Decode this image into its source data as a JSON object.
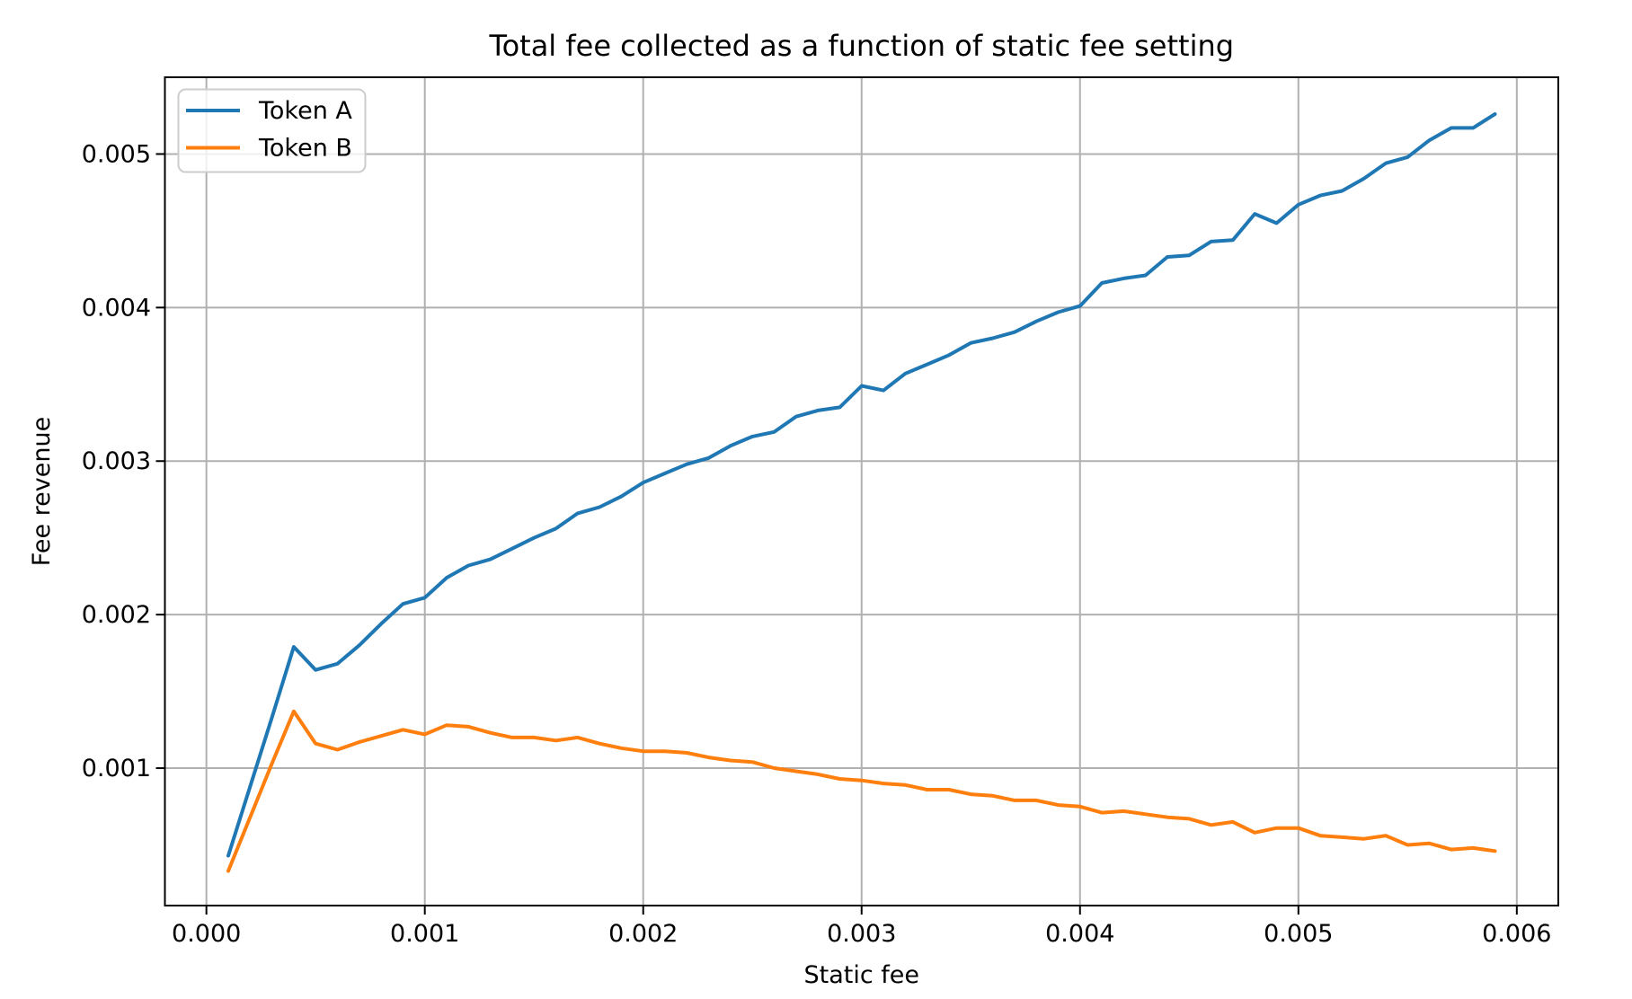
{
  "chart_data": {
    "type": "line",
    "title": "Total fee collected as a function of static fee setting",
    "xlabel": "Static fee",
    "ylabel": "Fee revenue",
    "grid": true,
    "grid_color": "#b0b0b0",
    "legend_position": "upper left",
    "xlim": [
      -0.00019,
      0.00619
    ],
    "ylim": [
      0.000105,
      0.0055
    ],
    "x_ticks": [
      {
        "v": 0.0,
        "label": "0.000"
      },
      {
        "v": 0.001,
        "label": "0.001"
      },
      {
        "v": 0.002,
        "label": "0.002"
      },
      {
        "v": 0.003,
        "label": "0.003"
      },
      {
        "v": 0.004,
        "label": "0.004"
      },
      {
        "v": 0.005,
        "label": "0.005"
      },
      {
        "v": 0.006,
        "label": "0.006"
      }
    ],
    "y_ticks": [
      {
        "v": 0.001,
        "label": "0.001"
      },
      {
        "v": 0.002,
        "label": "0.002"
      },
      {
        "v": 0.003,
        "label": "0.003"
      },
      {
        "v": 0.004,
        "label": "0.004"
      },
      {
        "v": 0.005,
        "label": "0.005"
      }
    ],
    "x": [
      0.0001,
      0.0002,
      0.0003,
      0.0004,
      0.0005,
      0.0006,
      0.0007,
      0.0008,
      0.0009,
      0.001,
      0.0011,
      0.0012,
      0.0013,
      0.0014,
      0.0015,
      0.0016,
      0.0017,
      0.0018,
      0.0019,
      0.002,
      0.0021,
      0.0022,
      0.0023,
      0.0024,
      0.0025,
      0.0026,
      0.0027,
      0.0028,
      0.0029,
      0.003,
      0.0031,
      0.0032,
      0.0033,
      0.0034,
      0.0035,
      0.0036,
      0.0037,
      0.0038,
      0.0039,
      0.004,
      0.0041,
      0.0042,
      0.0043,
      0.0044,
      0.0045,
      0.0046,
      0.0047,
      0.0048,
      0.0049,
      0.005,
      0.0051,
      0.0052,
      0.0053,
      0.0054,
      0.0055,
      0.0056,
      0.0057,
      0.0058,
      0.0059
    ],
    "series": [
      {
        "name": "Token A",
        "color": "#1f77b4",
        "values": [
          0.00043,
          0.00088,
          0.00133,
          0.00179,
          0.00164,
          0.00168,
          0.0018,
          0.00194,
          0.00207,
          0.00211,
          0.00224,
          0.00232,
          0.00236,
          0.00243,
          0.0025,
          0.00256,
          0.00266,
          0.0027,
          0.00277,
          0.00286,
          0.00292,
          0.00298,
          0.00302,
          0.0031,
          0.00316,
          0.00319,
          0.00329,
          0.00333,
          0.00335,
          0.00349,
          0.00346,
          0.00357,
          0.00363,
          0.00369,
          0.00377,
          0.0038,
          0.00384,
          0.00391,
          0.00397,
          0.00401,
          0.00416,
          0.00419,
          0.00421,
          0.00433,
          0.00434,
          0.00443,
          0.00444,
          0.00461,
          0.00455,
          0.00467,
          0.00473,
          0.00476,
          0.00484,
          0.00494,
          0.00498,
          0.00509,
          0.00517,
          0.00517,
          0.00526
        ]
      },
      {
        "name": "Token B",
        "color": "#ff7f0e",
        "values": [
          0.00033,
          0.00068,
          0.00103,
          0.00137,
          0.00116,
          0.00112,
          0.00117,
          0.00121,
          0.00125,
          0.00122,
          0.00128,
          0.00127,
          0.00123,
          0.0012,
          0.0012,
          0.00118,
          0.0012,
          0.00116,
          0.00113,
          0.00111,
          0.00111,
          0.0011,
          0.00107,
          0.00105,
          0.00104,
          0.001,
          0.00098,
          0.00096,
          0.00093,
          0.00092,
          0.0009,
          0.00089,
          0.00086,
          0.00086,
          0.00083,
          0.00082,
          0.00079,
          0.00079,
          0.00076,
          0.00075,
          0.00071,
          0.00072,
          0.0007,
          0.00068,
          0.00067,
          0.00063,
          0.00065,
          0.00058,
          0.00061,
          0.00061,
          0.00056,
          0.00055,
          0.00054,
          0.00056,
          0.0005,
          0.00051,
          0.00047,
          0.00048,
          0.00046
        ]
      }
    ]
  }
}
